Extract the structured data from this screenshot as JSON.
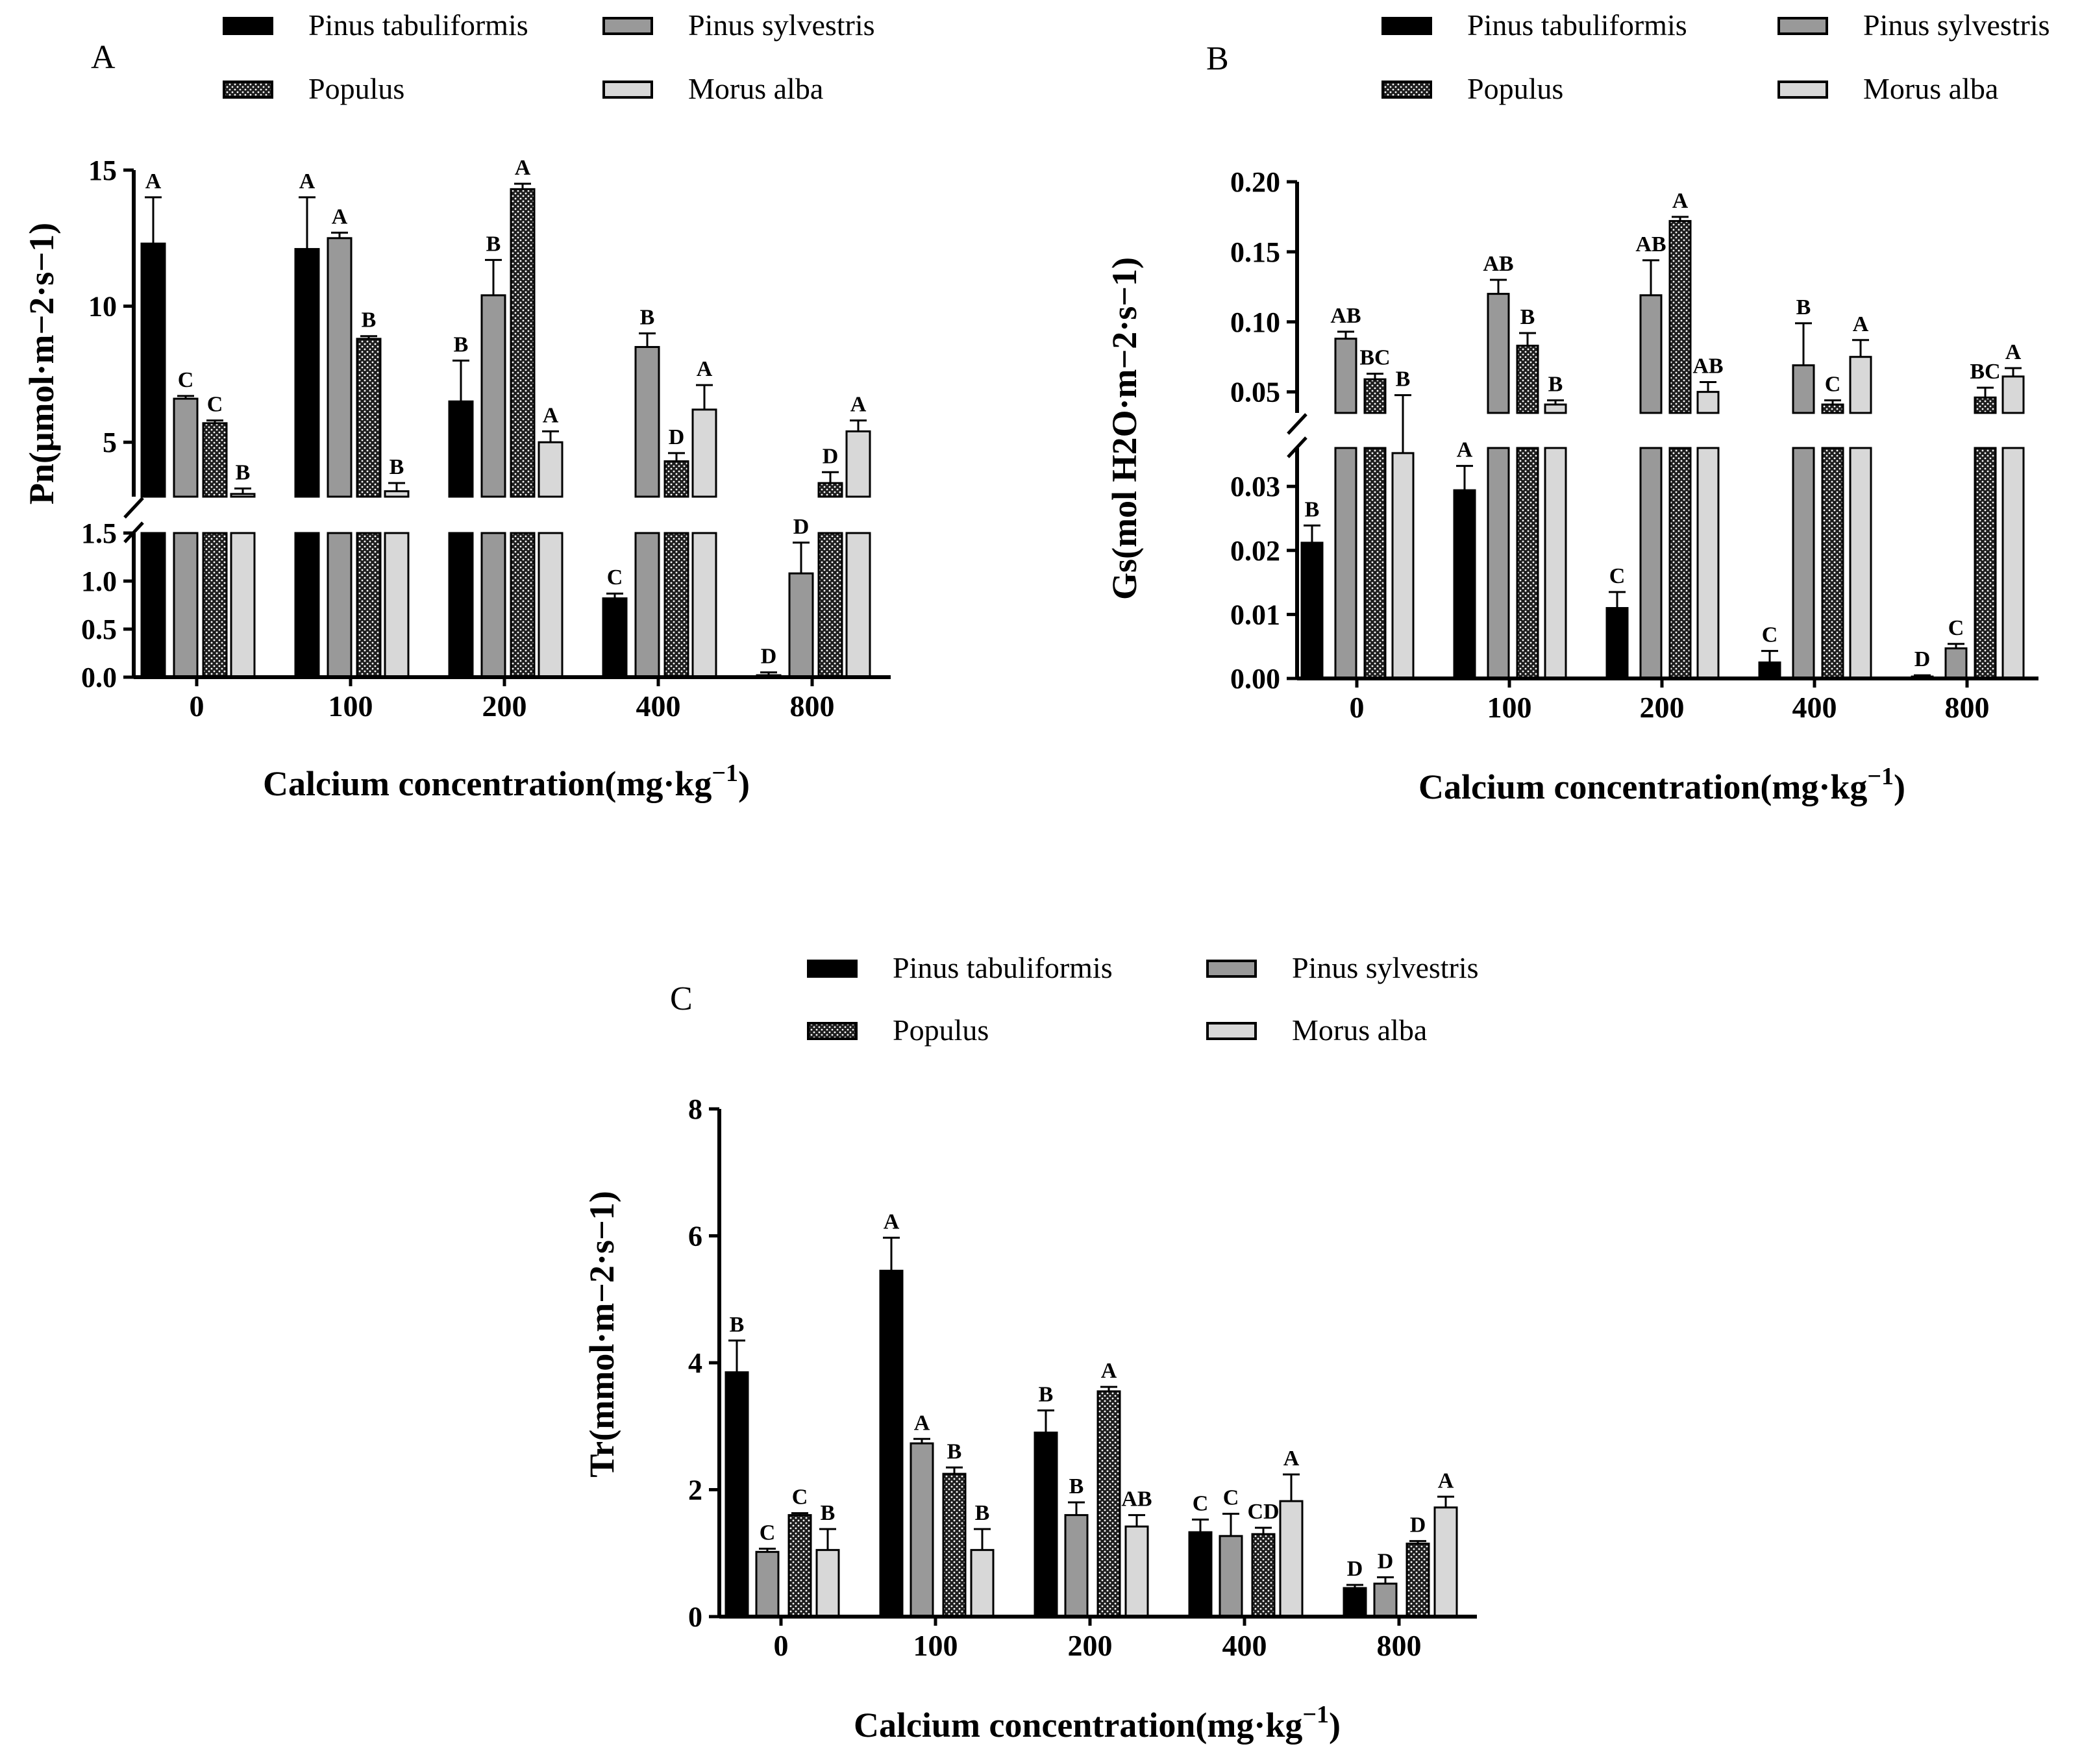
{
  "colors": {
    "pinus_tabuliformis": "#000000",
    "pinus_sylvestris": "#999999",
    "populus": "#222222",
    "morus_alba": "#d8d8d8",
    "axis": "#000000"
  },
  "legend": {
    "pinus_tabuliformis": "Pinus tabuliformis",
    "pinus_sylvestris": "Pinus sylvestris",
    "populus": "Populus",
    "morus_alba": "Morus alba"
  },
  "chart_data": [
    {
      "panel": "A",
      "type": "bar",
      "title": "",
      "xlabel": "Calcium concentration(mg·kg",
      "xlabel_sup": "−1",
      "xlabel_end": ")",
      "ylabel": "Pn(μmol·m−2·s−1)",
      "categories": [
        "0",
        "100",
        "200",
        "400",
        "800"
      ],
      "broken_axis": {
        "lower_range": [
          0,
          1.5
        ],
        "upper_range": [
          3,
          15
        ]
      },
      "lower_ticks": [
        "0.0",
        "0.5",
        "1.0",
        "1.5"
      ],
      "upper_ticks": [
        "5",
        "10",
        "15"
      ],
      "series": [
        {
          "name": "Pinus tabuliformis",
          "values": [
            12.3,
            12.1,
            6.5,
            0.82,
            0.02
          ],
          "errors": [
            1.7,
            1.9,
            1.5,
            0.05,
            0.03
          ],
          "letters": [
            "A",
            "A",
            "B",
            "C",
            "D"
          ]
        },
        {
          "name": "Pinus sylvestris",
          "values": [
            6.6,
            12.5,
            10.4,
            8.5,
            1.08
          ],
          "errors": [
            0.1,
            0.2,
            1.3,
            0.5,
            0.32
          ],
          "letters": [
            "C",
            "A",
            "B",
            "B",
            "D"
          ]
        },
        {
          "name": "Populus",
          "values": [
            5.7,
            8.8,
            14.3,
            4.3,
            3.5
          ],
          "errors": [
            0.1,
            0.1,
            0.2,
            0.3,
            0.4
          ],
          "letters": [
            "C",
            "B",
            "A",
            "D",
            "D"
          ]
        },
        {
          "name": "Morus alba",
          "values": [
            3.1,
            3.2,
            5.0,
            6.2,
            5.4
          ],
          "errors": [
            0.2,
            0.3,
            0.4,
            0.9,
            0.4
          ],
          "letters": [
            "B",
            "B",
            "A",
            "A",
            "A"
          ]
        }
      ]
    },
    {
      "panel": "B",
      "type": "bar",
      "title": "",
      "xlabel": "Calcium concentration(mg·kg",
      "xlabel_sup": "−1",
      "xlabel_end": ")",
      "ylabel": "Gs(mol H2O·m−2·s−1)",
      "categories": [
        "0",
        "100",
        "200",
        "400",
        "800"
      ],
      "broken_axis": {
        "lower_range": [
          0,
          0.036
        ],
        "upper_range": [
          0.035,
          0.2
        ]
      },
      "lower_ticks": [
        "0.00",
        "0.01",
        "0.02",
        "0.03"
      ],
      "upper_ticks": [
        "0.05",
        "0.10",
        "0.15",
        "0.20"
      ],
      "series": [
        {
          "name": "Pinus tabuliformis",
          "values": [
            0.0212,
            0.0294,
            0.011,
            0.0025,
            0.0003
          ],
          "errors": [
            0.0027,
            0.0038,
            0.0025,
            0.0018,
            0.0002
          ],
          "letters": [
            "B",
            "A",
            "C",
            "C",
            "D"
          ]
        },
        {
          "name": "Pinus sylvestris",
          "values": [
            0.088,
            0.12,
            0.119,
            0.069,
            0.0047
          ],
          "errors": [
            0.005,
            0.01,
            0.025,
            0.03,
            0.0007
          ],
          "letters": [
            "AB",
            "AB",
            "AB",
            "B",
            "C"
          ]
        },
        {
          "name": "Populus",
          "values": [
            0.059,
            0.083,
            0.172,
            0.041,
            0.046
          ],
          "errors": [
            0.004,
            0.009,
            0.003,
            0.003,
            0.007
          ],
          "letters": [
            "BC",
            "B",
            "A",
            "C",
            "BC"
          ]
        },
        {
          "name": "Morus alba",
          "values": [
            0.0352,
            0.041,
            0.05,
            0.075,
            0.061
          ],
          "errors": [
            0.0125,
            0.003,
            0.007,
            0.012,
            0.006
          ],
          "letters": [
            "B",
            "B",
            "AB",
            "A",
            "A"
          ]
        }
      ]
    },
    {
      "panel": "C",
      "type": "bar",
      "title": "",
      "xlabel": "Calcium concentration(mg·kg",
      "xlabel_sup": "−1",
      "xlabel_end": ")",
      "ylabel": "Tr(mmol·m−2·s−1)",
      "categories": [
        "0",
        "100",
        "200",
        "400",
        "800"
      ],
      "ylim": [
        0,
        8
      ],
      "ticks": [
        "0",
        "2",
        "4",
        "6",
        "8"
      ],
      "series": [
        {
          "name": "Pinus tabuliformis",
          "values": [
            3.85,
            5.45,
            2.9,
            1.33,
            0.45
          ],
          "errors": [
            0.5,
            0.52,
            0.35,
            0.2,
            0.05
          ],
          "letters": [
            "B",
            "A",
            "B",
            "C",
            "D"
          ]
        },
        {
          "name": "Pinus sylvestris",
          "values": [
            1.02,
            2.73,
            1.6,
            1.27,
            0.52
          ],
          "errors": [
            0.05,
            0.07,
            0.2,
            0.35,
            0.1
          ],
          "letters": [
            "C",
            "A",
            "B",
            "C",
            "D"
          ]
        },
        {
          "name": "Populus",
          "values": [
            1.6,
            2.25,
            3.55,
            1.3,
            1.15
          ],
          "errors": [
            0.03,
            0.1,
            0.07,
            0.1,
            0.04
          ],
          "letters": [
            "C",
            "B",
            "A",
            "CD",
            "D"
          ]
        },
        {
          "name": "Morus alba",
          "values": [
            1.05,
            1.05,
            1.42,
            1.82,
            1.72
          ],
          "errors": [
            0.33,
            0.33,
            0.18,
            0.42,
            0.17
          ],
          "letters": [
            "B",
            "B",
            "AB",
            "A",
            "A"
          ]
        }
      ]
    }
  ]
}
